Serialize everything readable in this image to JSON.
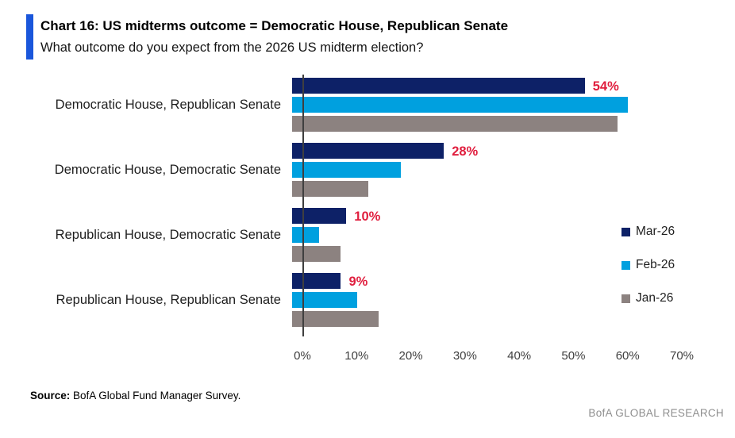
{
  "header": {
    "title": "Chart 16: US midterms outcome = Democratic House, Republican Senate",
    "subtitle": "What outcome do you expect from the 2026 US midterm election?"
  },
  "chart_data": {
    "type": "bar",
    "orientation": "horizontal",
    "title": "Chart 16: US midterms outcome = Democratic House, Republican Senate",
    "subtitle": "What outcome do you expect from the 2026 US midterm election?",
    "categories": [
      "Democratic House, Republican Senate",
      "Democratic House, Democratic Senate",
      "Republican House, Democratic Senate",
      "Republican House, Republican Senate"
    ],
    "series": [
      {
        "name": "Mar-26",
        "color": "#0d2167",
        "values": [
          54,
          28,
          10,
          9
        ]
      },
      {
        "name": "Feb-26",
        "color": "#00a0df",
        "values": [
          62,
          20,
          5,
          12
        ]
      },
      {
        "name": "Jan-26",
        "color": "#8c8280",
        "values": [
          60,
          14,
          9,
          16
        ]
      }
    ],
    "data_labels": {
      "series": "Mar-26",
      "labels": [
        "54%",
        "28%",
        "10%",
        "9%"
      ],
      "color": "#e01e3e"
    },
    "x_ticks": [
      "0%",
      "10%",
      "20%",
      "30%",
      "40%",
      "50%",
      "60%",
      "70%"
    ],
    "xlim": [
      0,
      70
    ],
    "grid": false,
    "legend_position": "right-middle",
    "accent_color": "#1a56db"
  },
  "footer": {
    "source_label": "Source:",
    "source_text": "BofA Global Fund Manager Survey.",
    "brand": "BofA GLOBAL RESEARCH"
  }
}
